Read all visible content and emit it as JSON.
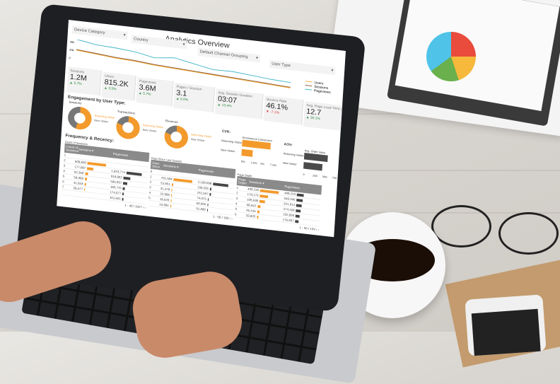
{
  "dashboard": {
    "title": "Analytics Overview",
    "filters": [
      "Device Category",
      "Country",
      "Default Channel Grouping",
      "User Type"
    ],
    "chart_data": {
      "type": "line",
      "y_ticks": [
        "40k",
        "20k",
        "0"
      ],
      "series": [
        {
          "name": "Users",
          "color": "#f5a623",
          "values": [
            14,
            12,
            10,
            9,
            7,
            6,
            5,
            4,
            3,
            2,
            1,
            0
          ]
        },
        {
          "name": "Sessions",
          "color": "#8b5a3c",
          "values": [
            15,
            13,
            11,
            10,
            8,
            7,
            6,
            5,
            4,
            3,
            2,
            1
          ]
        },
        {
          "name": "Pageviews",
          "color": "#3fb5c8",
          "values": [
            30,
            26,
            25,
            23,
            18,
            22,
            17,
            12,
            13,
            11,
            9,
            8
          ]
        }
      ]
    },
    "kpis": [
      {
        "label": "Sessions",
        "value": "1.2M",
        "delta": "▲ 5.7%",
        "up": true
      },
      {
        "label": "Users",
        "value": "815.2K",
        "delta": "▲ 3.5%",
        "up": true
      },
      {
        "label": "Pageviews",
        "value": "3.6M",
        "delta": "▲ 5.7%",
        "up": true
      },
      {
        "label": "Pages / Session",
        "value": "3.1",
        "delta": "▲ 0.0%",
        "up": true
      },
      {
        "label": "Avg. Session Duration",
        "value": "03:07",
        "delta": "▲ 13.4%",
        "up": true
      },
      {
        "label": "Bounce Rate",
        "value": "46.1%",
        "delta": "▼ -7.1%",
        "up": false
      },
      {
        "label": "Avg. Page Load Time (sec)",
        "value": "12.7",
        "delta": "▲ 30.1%",
        "up": true
      }
    ],
    "engagement_title": "Engagement by User Type:",
    "donuts": [
      {
        "label": "Sessions",
        "returning": 0.55
      },
      {
        "label": "Transactions",
        "returning": 0.8
      },
      {
        "label": "Revenue",
        "returning": 0.8
      }
    ],
    "donut_legend": [
      "Returning Visitor",
      "New Visitor"
    ],
    "cvr": {
      "label": "CVR:",
      "legend": "Ecommerce Conversion",
      "rows": [
        {
          "name": "Returning Visitor",
          "value": 0.9
        },
        {
          "name": "New Visitor",
          "value": 0.35
        }
      ],
      "ticks": [
        "0%",
        "2.5%",
        "5%",
        "7.5%"
      ]
    },
    "aov": {
      "label": "AOV:",
      "legend": "Avg. Order Value",
      "rows": [
        {
          "name": "Returning Visitor",
          "value": 0.75
        },
        {
          "name": "New Visitor",
          "value": 0.6
        }
      ],
      "ticks": [
        "0",
        "250",
        "500",
        "750"
      ]
    },
    "freq_title": "Frequency & Recency:",
    "tables": [
      {
        "caption": "Count of Sessions",
        "col1": "Count of Sessions",
        "col2": "Sessions ▾",
        "col3": "Pageviews",
        "pager": "1 - 40 / 1027",
        "rows": [
          [
            "1",
            "",
            "",
            0,
            0
          ],
          [
            "2",
            "509,840",
            "",
            0.9,
            0
          ],
          [
            "3",
            "177,087",
            "1,823,774",
            0.3,
            0.9
          ],
          [
            "4",
            "92,350",
            "918,802",
            0.15,
            0.4
          ],
          [
            "5",
            "58,908",
            "595,957",
            0.1,
            0.25
          ],
          [
            "6",
            "41,818",
            "185,776",
            0.08,
            0.1
          ],
          [
            "7",
            "30,677",
            "174,077",
            0.06,
            0.08
          ],
          [
            "",
            "",
            "161,651",
            0,
            0.07
          ]
        ]
      },
      {
        "caption": "Days Since Last Session",
        "col1": "Days Since Last Session",
        "col2": "Sessions ▾",
        "col3": "Pageviews",
        "pager": "1 - 50 / 183",
        "rows": [
          [
            "0",
            "",
            "",
            0,
            0
          ],
          [
            "1",
            "761,584",
            "2,109,098",
            0.9,
            0.9
          ],
          [
            "2",
            "52,851",
            "158,281",
            0.08,
            0.08
          ],
          [
            "3",
            "31,478",
            "151,667",
            0.05,
            0.07
          ],
          [
            "4",
            "22,908",
            "74,075",
            0.04,
            0.04
          ],
          [
            "5",
            "18,620",
            "60,956",
            0.03,
            0.03
          ],
          [
            "",
            "15,981",
            "51,880",
            0.02,
            0.02
          ]
        ]
      },
      {
        "caption": "Page Depth",
        "col1": "Page Depth",
        "col2": "Sessions ▾",
        "col3": "Pageviews",
        "pager": "1 - 50 / 134",
        "rows": [
          [
            "1",
            "409,233",
            "409,233",
            0.9,
            0.4
          ],
          [
            "2",
            "170,173",
            "340,346",
            0.4,
            0.35
          ],
          [
            "3",
            "105,638",
            "321,914",
            0.25,
            0.3
          ],
          [
            "4",
            "68,542",
            "274,168",
            0.15,
            0.27
          ],
          [
            "5",
            "46,416",
            "232,050",
            0.1,
            0.22
          ],
          [
            "6",
            "33,820",
            "176,937",
            0.08,
            0.18
          ]
        ]
      }
    ]
  }
}
